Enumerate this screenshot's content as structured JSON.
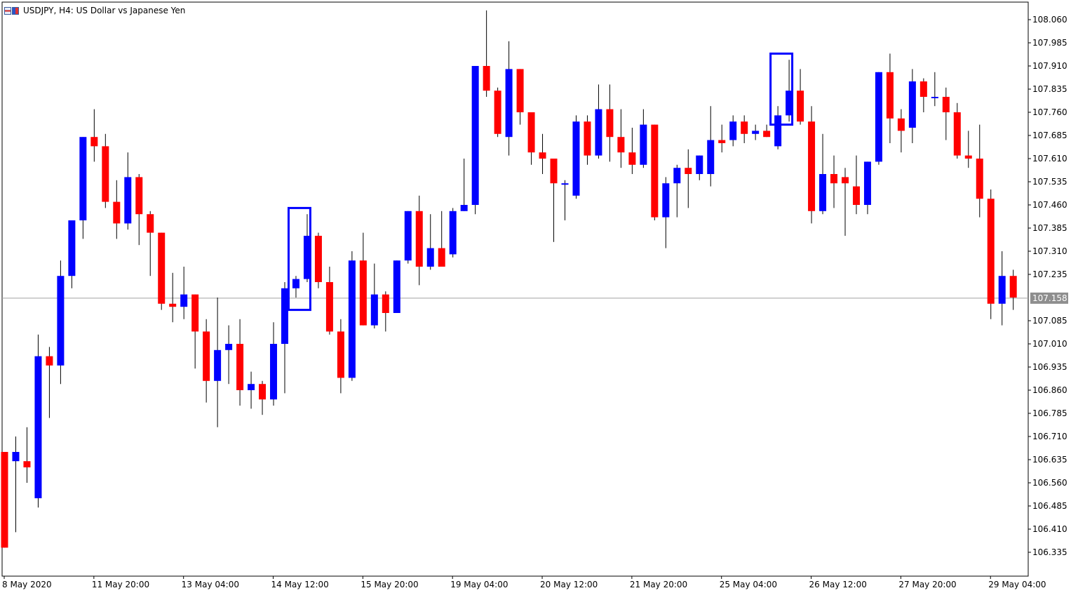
{
  "window": {
    "title": "USDJPY, H4:  US Dollar vs Japanese Yen"
  },
  "colors": {
    "bull": "#0000ff",
    "bear": "#ff0000",
    "wick_bull": "#000000",
    "wick_bear": "#000000",
    "highlight": "#0000ff",
    "price_line": "#a0a0a0",
    "price_label_bg": "#8e8e8e",
    "price_label_text": "#ffffff",
    "axis": "#000000"
  },
  "chart_data": {
    "type": "candlestick",
    "symbol": "USDJPY",
    "timeframe": "H4",
    "ylim": [
      106.26,
      108.11
    ],
    "yticks": [
      "108.060",
      "107.985",
      "107.910",
      "107.835",
      "107.760",
      "107.685",
      "107.610",
      "107.535",
      "107.460",
      "107.385",
      "107.310",
      "107.235",
      "107.085",
      "107.010",
      "106.935",
      "106.860",
      "106.785",
      "106.710",
      "106.635",
      "106.560",
      "106.485",
      "106.410",
      "106.335"
    ],
    "xticks": [
      {
        "index": 0,
        "label": "8 May 2020"
      },
      {
        "index": 8,
        "label": "11 May 20:00"
      },
      {
        "index": 16,
        "label": "13 May 04:00"
      },
      {
        "index": 24,
        "label": "14 May 12:00"
      },
      {
        "index": 32,
        "label": "15 May 20:00"
      },
      {
        "index": 40,
        "label": "19 May 04:00"
      },
      {
        "index": 48,
        "label": "20 May 12:00"
      },
      {
        "index": 56,
        "label": "21 May 20:00"
      },
      {
        "index": 64,
        "label": "25 May 04:00"
      },
      {
        "index": 72,
        "label": "26 May 12:00"
      },
      {
        "index": 80,
        "label": "27 May 20:00"
      },
      {
        "index": 88,
        "label": "29 May 04:00"
      }
    ],
    "current_price": "107.158",
    "candles": [
      [
        106.66,
        106.66,
        106.35,
        106.35
      ],
      [
        106.63,
        106.71,
        106.4,
        106.66
      ],
      [
        106.63,
        106.74,
        106.56,
        106.61
      ],
      [
        106.51,
        107.04,
        106.48,
        106.97
      ],
      [
        106.97,
        107.0,
        106.77,
        106.94
      ],
      [
        106.94,
        107.28,
        106.88,
        107.23
      ],
      [
        107.23,
        107.41,
        107.19,
        107.41
      ],
      [
        107.41,
        107.68,
        107.35,
        107.68
      ],
      [
        107.68,
        107.77,
        107.6,
        107.65
      ],
      [
        107.65,
        107.69,
        107.45,
        107.47
      ],
      [
        107.47,
        107.54,
        107.35,
        107.4
      ],
      [
        107.4,
        107.63,
        107.38,
        107.55
      ],
      [
        107.55,
        107.56,
        107.33,
        107.43
      ],
      [
        107.43,
        107.44,
        107.23,
        107.37
      ],
      [
        107.37,
        107.37,
        107.12,
        107.14
      ],
      [
        107.14,
        107.24,
        107.08,
        107.13
      ],
      [
        107.13,
        107.26,
        107.09,
        107.17
      ],
      [
        107.17,
        107.17,
        106.93,
        107.05
      ],
      [
        107.05,
        107.09,
        106.82,
        106.89
      ],
      [
        106.89,
        107.16,
        106.74,
        106.99
      ],
      [
        106.99,
        107.07,
        106.88,
        107.01
      ],
      [
        107.01,
        107.09,
        106.81,
        106.86
      ],
      [
        106.86,
        106.92,
        106.8,
        106.88
      ],
      [
        106.88,
        106.89,
        106.78,
        106.83
      ],
      [
        106.83,
        107.08,
        106.81,
        107.01
      ],
      [
        107.01,
        107.21,
        106.85,
        107.19
      ],
      [
        107.19,
        107.23,
        107.16,
        107.22
      ],
      [
        107.22,
        107.43,
        107.21,
        107.36
      ],
      [
        107.36,
        107.37,
        107.19,
        107.21
      ],
      [
        107.21,
        107.26,
        107.04,
        107.05
      ],
      [
        107.05,
        107.09,
        106.85,
        106.9
      ],
      [
        106.9,
        107.31,
        106.89,
        107.28
      ],
      [
        107.28,
        107.37,
        107.07,
        107.07
      ],
      [
        107.07,
        107.27,
        107.06,
        107.17
      ],
      [
        107.17,
        107.18,
        107.05,
        107.11
      ],
      [
        107.11,
        107.28,
        107.11,
        107.28
      ],
      [
        107.28,
        107.44,
        107.27,
        107.44
      ],
      [
        107.44,
        107.49,
        107.2,
        107.26
      ],
      [
        107.26,
        107.43,
        107.25,
        107.32
      ],
      [
        107.32,
        107.44,
        107.26,
        107.26
      ],
      [
        107.3,
        107.45,
        107.29,
        107.44
      ],
      [
        107.44,
        107.61,
        107.44,
        107.46
      ],
      [
        107.46,
        107.91,
        107.43,
        107.91
      ],
      [
        107.91,
        108.09,
        107.81,
        107.83
      ],
      [
        107.83,
        107.84,
        107.68,
        107.69
      ],
      [
        107.68,
        107.99,
        107.62,
        107.9
      ],
      [
        107.9,
        107.9,
        107.72,
        107.76
      ],
      [
        107.76,
        107.76,
        107.59,
        107.63
      ],
      [
        107.63,
        107.69,
        107.56,
        107.61
      ],
      [
        107.61,
        107.61,
        107.34,
        107.53
      ],
      [
        107.53,
        107.54,
        107.41,
        107.53
      ],
      [
        107.49,
        107.75,
        107.48,
        107.73
      ],
      [
        107.73,
        107.75,
        107.59,
        107.62
      ],
      [
        107.62,
        107.85,
        107.61,
        107.77
      ],
      [
        107.77,
        107.85,
        107.6,
        107.68
      ],
      [
        107.68,
        107.77,
        107.58,
        107.63
      ],
      [
        107.63,
        107.71,
        107.56,
        107.59
      ],
      [
        107.59,
        107.77,
        107.58,
        107.72
      ],
      [
        107.72,
        107.72,
        107.41,
        107.42
      ],
      [
        107.42,
        107.55,
        107.32,
        107.53
      ],
      [
        107.53,
        107.59,
        107.42,
        107.58
      ],
      [
        107.58,
        107.64,
        107.45,
        107.56
      ],
      [
        107.56,
        107.62,
        107.54,
        107.62
      ],
      [
        107.56,
        107.78,
        107.52,
        107.67
      ],
      [
        107.67,
        107.72,
        107.63,
        107.66
      ],
      [
        107.67,
        107.75,
        107.65,
        107.73
      ],
      [
        107.73,
        107.75,
        107.66,
        107.69
      ],
      [
        107.69,
        107.72,
        107.67,
        107.7
      ],
      [
        107.7,
        107.72,
        107.68,
        107.68
      ],
      [
        107.65,
        107.78,
        107.64,
        107.75
      ],
      [
        107.75,
        107.93,
        107.73,
        107.83
      ],
      [
        107.83,
        107.9,
        107.72,
        107.73
      ],
      [
        107.73,
        107.78,
        107.4,
        107.44
      ],
      [
        107.44,
        107.69,
        107.43,
        107.56
      ],
      [
        107.56,
        107.62,
        107.45,
        107.53
      ],
      [
        107.55,
        107.58,
        107.36,
        107.53
      ],
      [
        107.52,
        107.62,
        107.43,
        107.46
      ],
      [
        107.46,
        107.6,
        107.43,
        107.6
      ],
      [
        107.6,
        107.89,
        107.59,
        107.89
      ],
      [
        107.89,
        107.95,
        107.66,
        107.74
      ],
      [
        107.74,
        107.77,
        107.63,
        107.7
      ],
      [
        107.71,
        107.9,
        107.66,
        107.86
      ],
      [
        107.86,
        107.87,
        107.76,
        107.81
      ],
      [
        107.81,
        107.89,
        107.78,
        107.81
      ],
      [
        107.81,
        107.84,
        107.67,
        107.76
      ],
      [
        107.76,
        107.79,
        107.61,
        107.62
      ],
      [
        107.62,
        107.7,
        107.58,
        107.61
      ],
      [
        107.61,
        107.72,
        107.42,
        107.48
      ],
      [
        107.48,
        107.51,
        107.09,
        107.14
      ],
      [
        107.14,
        107.31,
        107.07,
        107.23
      ],
      [
        107.23,
        107.25,
        107.12,
        107.16
      ]
    ],
    "highlights": [
      {
        "from": 26,
        "to": 28,
        "low": 107.12,
        "high": 107.45
      },
      {
        "from": 69,
        "to": 71,
        "low": 107.72,
        "high": 107.95
      }
    ]
  }
}
